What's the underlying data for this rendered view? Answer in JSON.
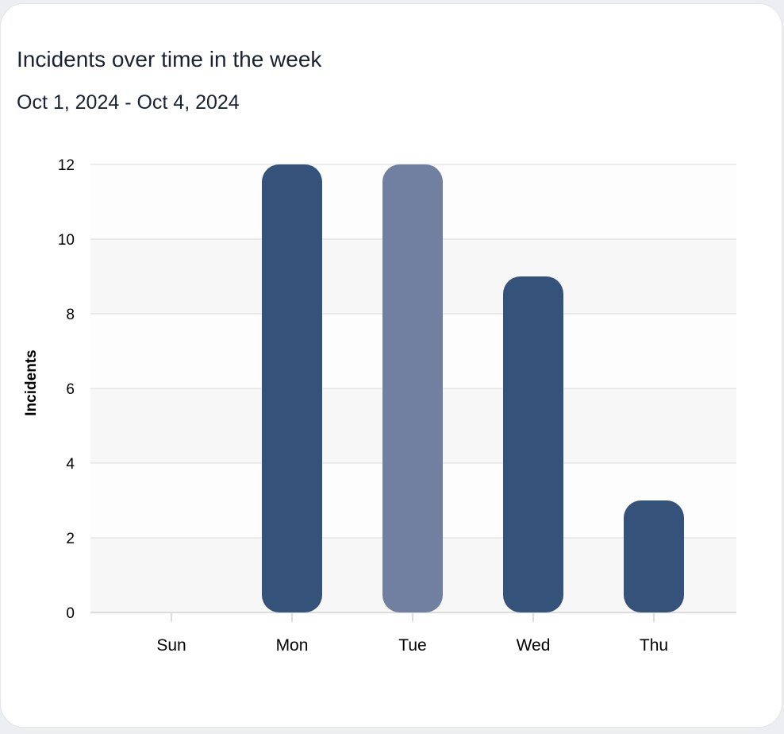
{
  "card": {
    "title": "Incidents over time in the week",
    "subtitle": "Oct 1, 2024 - Oct 4, 2024"
  },
  "chart_data": {
    "type": "bar",
    "categories": [
      "Sun",
      "Mon",
      "Tue",
      "Wed",
      "Thu"
    ],
    "values": [
      0,
      12,
      12,
      9,
      3
    ],
    "xlabel": "",
    "ylabel": "Incidents",
    "ylim": [
      0,
      12
    ],
    "yticks": [
      "0",
      "2",
      "4",
      "6",
      "8",
      "10",
      "12"
    ],
    "grid": true,
    "highlighted_category": "Tue",
    "colors": {
      "bar": "#35527a",
      "highlight": "#717fa0"
    }
  }
}
